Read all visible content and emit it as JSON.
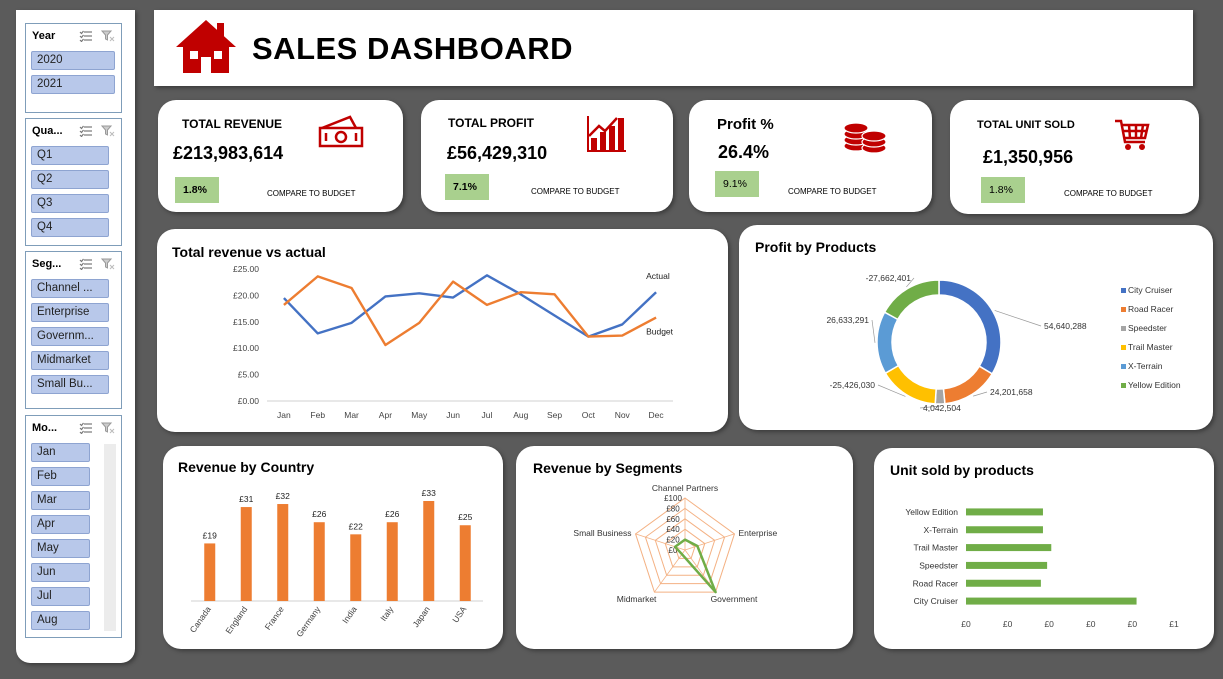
{
  "header": {
    "title": "SALES DASHBOARD"
  },
  "colors": {
    "accent_red": "#c00000",
    "orange": "#ed7d31",
    "blue": "#4472c4",
    "green": "#70ad47",
    "gray": "#a5a5a5",
    "yellow": "#ffc000",
    "light_blue": "#5b9bd5",
    "kpi_badge": "#a9d08e",
    "slicer_item": "#b8c8ea"
  },
  "slicers": {
    "year": {
      "title": "Year",
      "items": [
        "2020",
        "2021"
      ]
    },
    "quarter": {
      "title": "Qua...",
      "items": [
        "Q1",
        "Q2",
        "Q3",
        "Q4"
      ]
    },
    "segment": {
      "title": "Seg...",
      "items": [
        "Channel ...",
        "Enterprise",
        "Governm...",
        "Midmarket",
        "Small Bu..."
      ]
    },
    "month": {
      "title": "Mo...",
      "items": [
        "Jan",
        "Feb",
        "Mar",
        "Apr",
        "May",
        "Jun",
        "Jul",
        "Aug"
      ]
    }
  },
  "kpis": [
    {
      "label": "TOTAL REVENUE",
      "value": "£213,983,614",
      "pct": "1.8%",
      "compare": "COMPARE TO BUDGET",
      "icon": "money-icon"
    },
    {
      "label": "TOTAL PROFIT",
      "value": "£56,429,310",
      "pct": "7.1%",
      "compare": "COMPARE TO BUDGET",
      "icon": "bar-chart-icon"
    },
    {
      "label": "Profit %",
      "value": "26.4%",
      "pct": "9.1%",
      "compare": "COMPARE TO BUDGET",
      "icon": "coins-icon"
    },
    {
      "label": "TOTAL UNIT SOLD",
      "value": "£1,350,956",
      "pct": "1.8%",
      "compare": "COMPARE TO BUDGET",
      "icon": "cart-icon"
    }
  ],
  "charts": {
    "revenue_vs_actual_title": "Total revenue vs actual",
    "profit_by_products_title": "Profit by Products",
    "revenue_by_country_title": "Revenue by Country",
    "revenue_by_segments_title": "Revenue by Segments",
    "unit_sold_title": "Unit sold by products"
  },
  "chart_data": [
    {
      "type": "line",
      "title": "Total revenue vs actual",
      "categories": [
        "Jan",
        "Feb",
        "Mar",
        "Apr",
        "May",
        "Jun",
        "Jul",
        "Aug",
        "Sep",
        "Oct",
        "Nov",
        "Dec"
      ],
      "y_ticks": [
        "£0.00",
        "£5.00",
        "£10.00",
        "£15.00",
        "£20.00",
        "£25.00"
      ],
      "ylim": [
        0,
        25
      ],
      "series": [
        {
          "name": "Actual",
          "color": "#4472c4",
          "values": [
            19.5,
            12.8,
            14.8,
            19.8,
            20.4,
            19.6,
            23.8,
            20.2,
            16.2,
            12.2,
            14.5,
            20.6
          ]
        },
        {
          "name": "Budget",
          "color": "#ed7d31",
          "values": [
            18.2,
            23.6,
            21.4,
            10.6,
            14.8,
            22.6,
            18.2,
            20.6,
            20.2,
            12.2,
            12.4,
            15.8
          ]
        }
      ]
    },
    {
      "type": "pie",
      "title": "Profit by Products",
      "categories": [
        "City Cruiser",
        "Road Racer",
        "Speedster",
        "Trail Master",
        "X-Terrain",
        "Yellow Edition"
      ],
      "values": [
        54640288,
        24201658,
        4042504,
        25426030,
        26633291,
        27662401
      ],
      "labels": [
        "54,640,288",
        "24,201,658",
        "4,042,504",
        "-25,426,030",
        "26,633,291",
        "-27,662,401"
      ],
      "colors": [
        "#4472c4",
        "#ed7d31",
        "#a5a5a5",
        "#ffc000",
        "#5b9bd5",
        "#70ad47"
      ],
      "legend": "right"
    },
    {
      "type": "bar",
      "title": "Revenue by Country",
      "categories": [
        "Canada",
        "England",
        "France",
        "Germany",
        "India",
        "Italy",
        "Japan",
        "USA"
      ],
      "values": [
        19,
        31,
        32,
        26,
        22,
        26,
        33,
        25
      ],
      "labels": [
        "£19",
        "£31",
        "£32",
        "£26",
        "£22",
        "£26",
        "£33",
        "£25"
      ],
      "color": "#ed7d31"
    },
    {
      "type": "radar",
      "title": "Revenue by Segments",
      "categories": [
        "Channel Partners",
        "Enterprise",
        "Government",
        "Midmarket",
        "Small Business"
      ],
      "values": [
        20,
        25,
        100,
        10,
        20
      ],
      "r_ticks": [
        "£0",
        "£20",
        "£40",
        "£60",
        "£80",
        "£100"
      ],
      "color": "#70ad47"
    },
    {
      "type": "bar",
      "orientation": "horizontal",
      "title": "Unit sold by products",
      "categories": [
        "City Cruiser",
        "Road Racer",
        "Speedster",
        "Trail Master",
        "X-Terrain",
        "Yellow Edition"
      ],
      "values": [
        0.82,
        0.36,
        0.39,
        0.41,
        0.37,
        0.37
      ],
      "x_ticks": [
        "£0",
        "£0",
        "£0",
        "£0",
        "£0",
        "£1"
      ],
      "color": "#70ad47"
    }
  ]
}
